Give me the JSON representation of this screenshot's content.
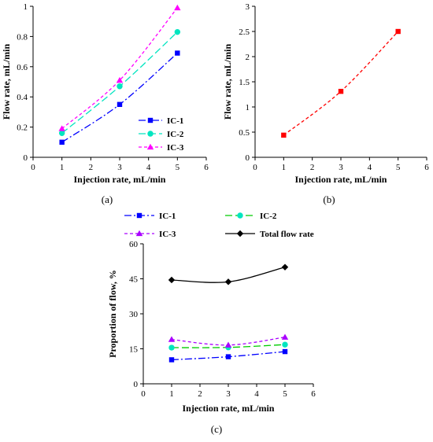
{
  "chart_data": [
    {
      "type": "line",
      "panel": "a",
      "panel_label": "(a)",
      "xlabel": "Injection rate, mL/min",
      "ylabel": "Flow rate, mL/min",
      "xlim": [
        0,
        6
      ],
      "ylim": [
        0,
        1
      ],
      "xticks": [
        0,
        1,
        2,
        3,
        4,
        5,
        6
      ],
      "yticks": [
        0,
        0.2,
        0.4,
        0.6,
        0.8,
        1
      ],
      "legend_position": "bottom-right",
      "grid": false,
      "series": [
        {
          "name": "IC-1",
          "x": [
            1,
            3,
            5
          ],
          "values": [
            0.1,
            0.35,
            0.69
          ],
          "color": "#0000ff",
          "marker": "square",
          "line_style": "dash-dot"
        },
        {
          "name": "IC-2",
          "x": [
            1,
            3,
            5
          ],
          "values": [
            0.16,
            0.47,
            0.83
          ],
          "color": "#00e5c0",
          "marker": "circle",
          "line_style": "long-dash"
        },
        {
          "name": "IC-3",
          "x": [
            1,
            3,
            5
          ],
          "values": [
            0.19,
            0.51,
            0.99
          ],
          "color": "#ff00ff",
          "marker": "triangle",
          "line_style": "dash"
        }
      ]
    },
    {
      "type": "line",
      "panel": "b",
      "panel_label": "(b)",
      "xlabel": "Injection rate, mL/min",
      "ylabel": "Flow rate, mL/min",
      "xlim": [
        0,
        6
      ],
      "ylim": [
        0,
        3
      ],
      "xticks": [
        0,
        1,
        2,
        3,
        4,
        5,
        6
      ],
      "yticks": [
        0,
        0.5,
        1,
        1.5,
        2,
        2.5,
        3
      ],
      "grid": false,
      "series": [
        {
          "x": [
            1,
            3,
            5
          ],
          "values": [
            0.44,
            1.31,
            2.5
          ],
          "color": "#ff0000",
          "marker": "square",
          "line_style": "dash"
        }
      ]
    },
    {
      "type": "line",
      "panel": "c",
      "panel_label": "(c)",
      "xlabel": "Injection rate, mL/min",
      "ylabel": "Proportion of flow, %",
      "xlim": [
        0,
        6
      ],
      "ylim": [
        0,
        60
      ],
      "xticks": [
        0,
        1,
        2,
        3,
        4,
        5,
        6
      ],
      "yticks": [
        0,
        15,
        30,
        45,
        60
      ],
      "legend_position": "top-outside",
      "grid": false,
      "series": [
        {
          "name": "IC-1",
          "x": [
            1,
            3,
            5
          ],
          "values": [
            10.3,
            11.6,
            13.8
          ],
          "color": "#0000ff",
          "marker": "square",
          "line_style": "dash-dot"
        },
        {
          "name": "IC-2",
          "x": [
            1,
            3,
            5
          ],
          "values": [
            15.5,
            15.6,
            16.8
          ],
          "color": "#00cc00",
          "marker": "circle",
          "line_style": "long-dash",
          "marker_color": "#00e5c0"
        },
        {
          "name": "IC-3",
          "x": [
            1,
            3,
            5
          ],
          "values": [
            19.0,
            16.6,
            20.0
          ],
          "color": "#aa00ff",
          "marker": "triangle",
          "line_style": "dash"
        },
        {
          "name": "Total flow rate",
          "x": [
            1,
            3,
            5
          ],
          "values": [
            44.5,
            43.7,
            50.0
          ],
          "color": "#000000",
          "marker": "diamond",
          "line_style": "solid"
        }
      ]
    }
  ]
}
